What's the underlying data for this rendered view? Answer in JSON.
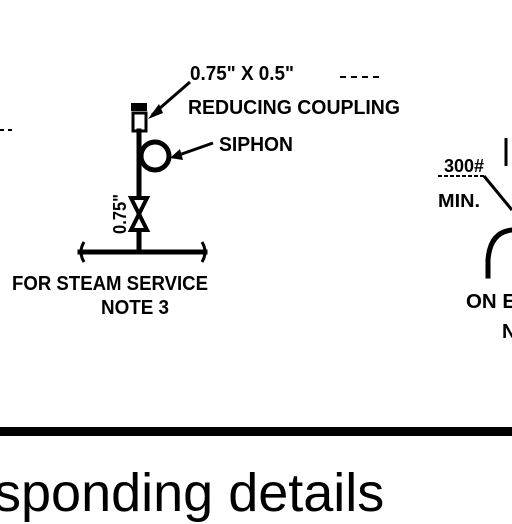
{
  "labels": {
    "size": "0.75\" X 0.5\"",
    "coupling": "REDUCING  COUPLING",
    "siphon": "SIPHON",
    "valve_size": "0.75\"",
    "service_line1": "FOR STEAM SERVICE",
    "service_line2": "NOTE 3",
    "pressure": "300#",
    "min": "MIN.",
    "right_partial1": "ON E",
    "right_partial2": "N"
  },
  "caption": "sponding details"
}
